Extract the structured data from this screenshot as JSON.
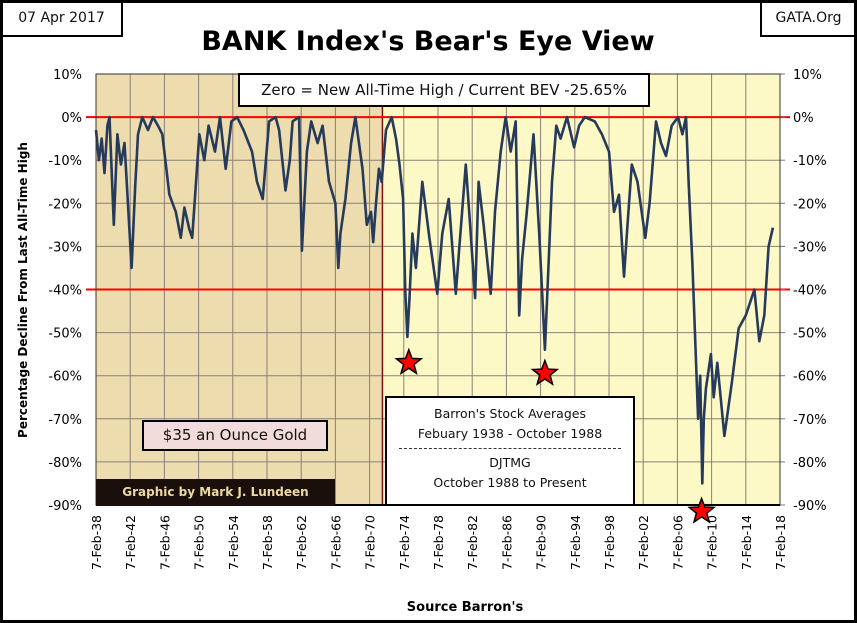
{
  "header": {
    "date": "07 Apr 2017",
    "source_site": "GATA.Org",
    "title": "BANK Index's Bear's Eye View"
  },
  "annotations": {
    "zero_note": "Zero = New All-Time High / Current BEV -25.65%",
    "gold_note": "$35 an Ounce Gold",
    "credit": "Graphic by Mark J. Lundeen",
    "source_line1": "Barron's Stock Averages",
    "source_line2": "Febuary 1938 - October 1988",
    "source_line3": "DJTMG",
    "source_line4": "October 1988 to Present"
  },
  "colors": {
    "series": "#263a5c",
    "reference_lines": "#ff0000",
    "gold_era_background": "#ecdcae",
    "modern_background": "#fdf9c6",
    "stars": "#ff0000"
  },
  "chart_data": {
    "type": "line",
    "title": "BANK Index's Bear's Eye View",
    "xlabel": "Source Barron's",
    "ylabel": "Percentage Decline From Last All-Time High",
    "xlim": [
      "1938-02",
      "2018-02"
    ],
    "ylim": [
      -90,
      10
    ],
    "grid": true,
    "x_tick_labels": [
      "7-Feb-38",
      "7-Feb-42",
      "7-Feb-46",
      "7-Feb-50",
      "7-Feb-54",
      "7-Feb-58",
      "7-Feb-62",
      "7-Feb-66",
      "7-Feb-70",
      "7-Feb-74",
      "7-Feb-78",
      "7-Feb-82",
      "7-Feb-86",
      "7-Feb-90",
      "7-Feb-94",
      "7-Feb-98",
      "7-Feb-02",
      "7-Feb-06",
      "7-Feb-10",
      "7-Feb-14",
      "7-Feb-18"
    ],
    "y_tick_labels": [
      "10%",
      "0%",
      "-10%",
      "-20%",
      "-30%",
      "-40%",
      "-50%",
      "-60%",
      "-70%",
      "-80%",
      "-90%"
    ],
    "y_ticks": [
      10,
      0,
      -10,
      -20,
      -30,
      -40,
      -50,
      -60,
      -70,
      -80,
      -90
    ],
    "reference_lines": [
      0,
      -40
    ],
    "shaded_region": {
      "label": "$35 an Ounce Gold",
      "from": "1938-02",
      "to": "1971-08"
    },
    "stars": [
      [
        "1974-09",
        -57
      ],
      [
        "1990-08",
        -59.5
      ],
      [
        "2008-12",
        -91.5
      ]
    ],
    "series": [
      {
        "points": [
          [
            "1938-02",
            -3
          ],
          [
            "1938-06",
            -10
          ],
          [
            "1938-10",
            -5
          ],
          [
            "1939-02",
            -13
          ],
          [
            "1939-06",
            -2
          ],
          [
            "1939-09",
            0
          ],
          [
            "1940-03",
            -25
          ],
          [
            "1940-08",
            -4
          ],
          [
            "1941-01",
            -11
          ],
          [
            "1941-06",
            -6
          ],
          [
            "1942-04",
            -35
          ],
          [
            "1942-09",
            -16
          ],
          [
            "1943-01",
            -4
          ],
          [
            "1943-07",
            0
          ],
          [
            "1944-03",
            -3
          ],
          [
            "1944-10",
            0
          ],
          [
            "1945-05",
            -2
          ],
          [
            "1945-11",
            -4
          ],
          [
            "1946-09",
            -18
          ],
          [
            "1947-06",
            -22
          ],
          [
            "1948-01",
            -28
          ],
          [
            "1948-06",
            -21
          ],
          [
            "1949-01",
            -26
          ],
          [
            "1949-05",
            -28
          ],
          [
            "1950-03",
            -4
          ],
          [
            "1950-10",
            -10
          ],
          [
            "1951-04",
            -2
          ],
          [
            "1952-01",
            -8
          ],
          [
            "1952-08",
            0
          ],
          [
            "1953-04",
            -12
          ],
          [
            "1953-12",
            -1
          ],
          [
            "1954-08",
            0
          ],
          [
            "1955-05",
            -3
          ],
          [
            "1956-05",
            -8
          ],
          [
            "1956-12",
            -15
          ],
          [
            "1957-08",
            -19
          ],
          [
            "1958-05",
            -1
          ],
          [
            "1959-02",
            0
          ],
          [
            "1959-07",
            -3
          ],
          [
            "1960-04",
            -17
          ],
          [
            "1960-10",
            -10
          ],
          [
            "1961-02",
            -1
          ],
          [
            "1961-11",
            0
          ],
          [
            "1962-03",
            -31
          ],
          [
            "1962-10",
            -8
          ],
          [
            "1963-04",
            -1
          ],
          [
            "1964-01",
            -6
          ],
          [
            "1964-08",
            -2
          ],
          [
            "1965-05",
            -15
          ],
          [
            "1966-02",
            -20
          ],
          [
            "1966-06",
            -35
          ],
          [
            "1966-09",
            -27
          ],
          [
            "1967-04",
            -19
          ],
          [
            "1967-12",
            -6
          ],
          [
            "1968-06",
            0
          ],
          [
            "1969-04",
            -12
          ],
          [
            "1969-10",
            -25
          ],
          [
            "1970-04",
            -22
          ],
          [
            "1970-07",
            -29
          ],
          [
            "1970-11",
            -20
          ],
          [
            "1971-03",
            -12
          ],
          [
            "1971-07",
            -15
          ],
          [
            "1972-01",
            -3
          ],
          [
            "1972-09",
            0
          ],
          [
            "1973-03",
            -5
          ],
          [
            "1973-08",
            -11
          ],
          [
            "1974-01",
            -19
          ],
          [
            "1974-04",
            -40
          ],
          [
            "1974-07",
            -51
          ],
          [
            "1974-10",
            -42
          ],
          [
            "1975-02",
            -27
          ],
          [
            "1975-07",
            -35
          ],
          [
            "1976-04",
            -15
          ],
          [
            "1977-02",
            -28
          ],
          [
            "1978-01",
            -41
          ],
          [
            "1978-08",
            -27
          ],
          [
            "1979-05",
            -19
          ],
          [
            "1980-03",
            -41
          ],
          [
            "1980-08",
            -30
          ],
          [
            "1981-05",
            -11
          ],
          [
            "1981-11",
            -25
          ],
          [
            "1982-06",
            -42
          ],
          [
            "1982-11",
            -15
          ],
          [
            "1983-06",
            -25
          ],
          [
            "1984-04",
            -41
          ],
          [
            "1984-10",
            -22
          ],
          [
            "1985-06",
            -8
          ],
          [
            "1986-01",
            0
          ],
          [
            "1986-08",
            -8
          ],
          [
            "1987-03",
            -1
          ],
          [
            "1987-08",
            -46
          ],
          [
            "1987-12",
            -33
          ],
          [
            "1988-06",
            -23
          ],
          [
            "1989-04",
            -4
          ],
          [
            "1989-12",
            -27
          ],
          [
            "1990-04",
            -40
          ],
          [
            "1990-08",
            -54
          ],
          [
            "1991-01",
            -35
          ],
          [
            "1991-06",
            -15
          ],
          [
            "1991-12",
            -2
          ],
          [
            "1992-06",
            -5
          ],
          [
            "1993-03",
            0
          ],
          [
            "1994-01",
            -7
          ],
          [
            "1994-08",
            -2
          ],
          [
            "1995-04",
            0
          ],
          [
            "1996-06",
            -1
          ],
          [
            "1997-04",
            -4
          ],
          [
            "1998-02",
            -8
          ],
          [
            "1998-09",
            -22
          ],
          [
            "1999-04",
            -18
          ],
          [
            "1999-11",
            -37
          ],
          [
            "2000-04",
            -25
          ],
          [
            "2000-10",
            -11
          ],
          [
            "2001-06",
            -15
          ],
          [
            "2002-05",
            -28
          ],
          [
            "2002-11",
            -20
          ],
          [
            "2003-08",
            -1
          ],
          [
            "2004-03",
            -6
          ],
          [
            "2004-10",
            -9
          ],
          [
            "2005-06",
            -2
          ],
          [
            "2006-03",
            0
          ],
          [
            "2006-09",
            -4
          ],
          [
            "2007-02",
            0
          ],
          [
            "2007-06",
            -16
          ],
          [
            "2007-11",
            -34
          ],
          [
            "2008-04",
            -56
          ],
          [
            "2008-07",
            -70
          ],
          [
            "2008-10",
            -60
          ],
          [
            "2009-01",
            -85
          ],
          [
            "2009-03",
            -70
          ],
          [
            "2009-06",
            -63
          ],
          [
            "2010-01",
            -55
          ],
          [
            "2010-05",
            -65
          ],
          [
            "2010-10",
            -57
          ],
          [
            "2011-08",
            -74
          ],
          [
            "2012-06",
            -62
          ],
          [
            "2013-04",
            -49
          ],
          [
            "2014-02",
            -46
          ],
          [
            "2015-02",
            -40
          ],
          [
            "2015-09",
            -52
          ],
          [
            "2016-04",
            -46
          ],
          [
            "2016-10",
            -30
          ],
          [
            "2017-04",
            -25.65
          ]
        ]
      }
    ]
  }
}
